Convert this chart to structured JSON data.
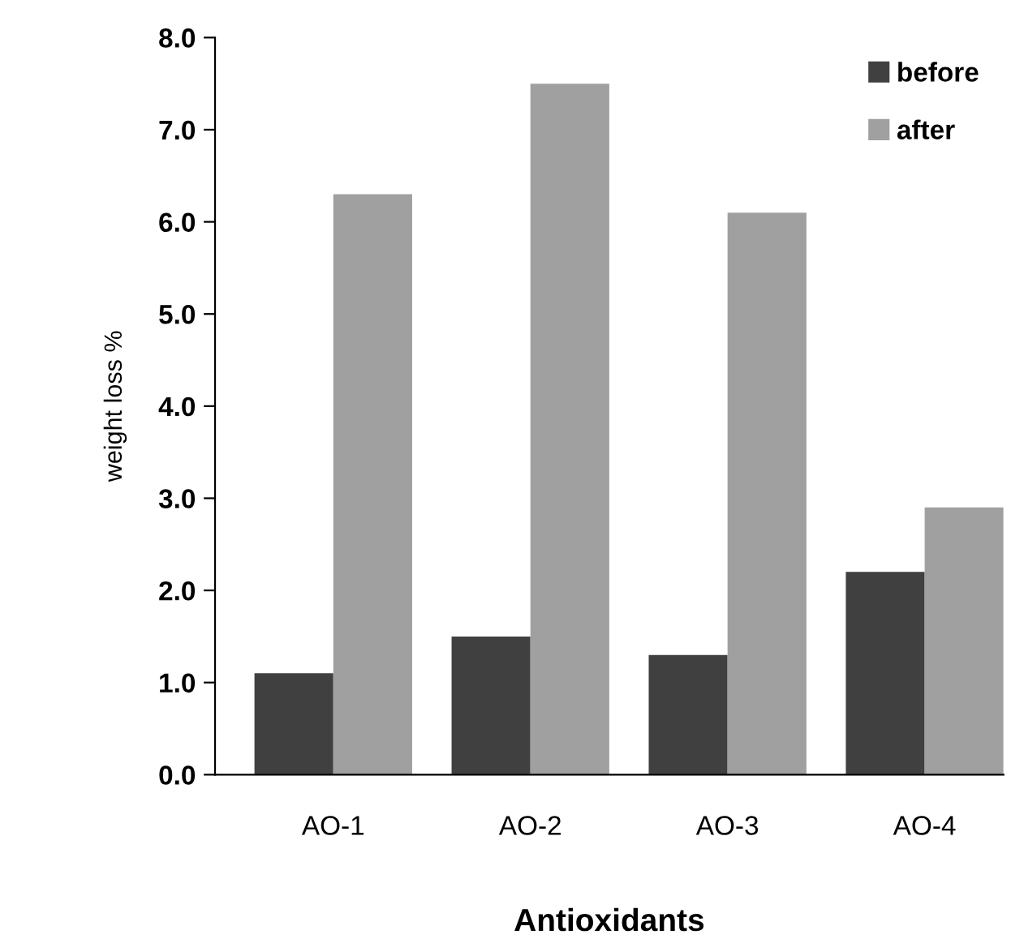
{
  "chart_data": {
    "type": "bar",
    "xlabel": "Antioxidants",
    "ylabel": "weight loss %",
    "categories": [
      "AO-1",
      "AO-2",
      "AO-3",
      "AO-4"
    ],
    "series": [
      {
        "name": "before",
        "color": "#404040",
        "values": [
          1.1,
          1.5,
          1.3,
          2.2
        ]
      },
      {
        "name": "after",
        "color": "#a0a0a0",
        "values": [
          6.3,
          7.5,
          6.1,
          2.9
        ]
      }
    ],
    "ylim": [
      0,
      8
    ],
    "yticks": [
      {
        "value": 0,
        "label": "0.0"
      },
      {
        "value": 1,
        "label": "1.0"
      },
      {
        "value": 2,
        "label": "2.0"
      },
      {
        "value": 3,
        "label": "3.0"
      },
      {
        "value": 4,
        "label": "4.0"
      },
      {
        "value": 5,
        "label": "5.0"
      },
      {
        "value": 6,
        "label": "6.0"
      },
      {
        "value": 7,
        "label": "7.0"
      },
      {
        "value": 8,
        "label": "8.0"
      }
    ],
    "grid": false,
    "legend": "top right"
  }
}
